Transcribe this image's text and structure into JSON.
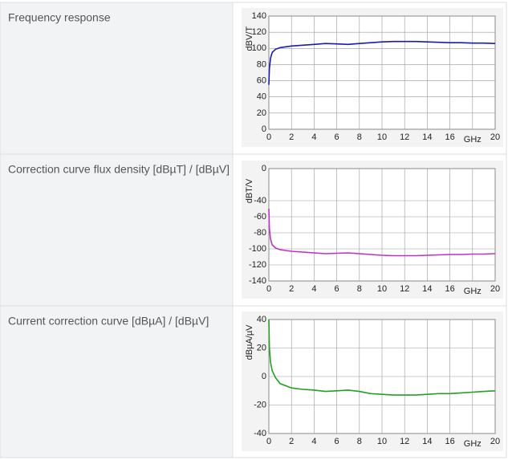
{
  "chart_data": [
    {
      "type": "line",
      "title": "Frequency response",
      "y_label": "dBV/T",
      "color": "#1a1ab4",
      "x": [
        0,
        0.05,
        0.15,
        0.3,
        0.6,
        1,
        2,
        3,
        4,
        5,
        6,
        7,
        8,
        9,
        10,
        11,
        12,
        13,
        14,
        15,
        16,
        17,
        18,
        19,
        20
      ],
      "values": [
        55,
        75,
        88,
        95,
        99,
        101,
        103,
        104,
        105,
        106,
        105.5,
        105,
        106,
        107,
        108,
        108.5,
        108.5,
        108.5,
        108,
        107.5,
        107,
        107,
        106.5,
        106.5,
        106
      ],
      "xlim": [
        0,
        20
      ],
      "ylim": [
        0,
        140
      ],
      "xticks": [
        0,
        2,
        4,
        6,
        8,
        10,
        12,
        14,
        16,
        {
          "value": 18,
          "label": "GHz"
        },
        20
      ],
      "yticks": [
        0,
        20,
        40,
        60,
        80,
        100,
        120,
        140
      ],
      "grid": true
    },
    {
      "type": "line",
      "title": "Correction curve flux density [dBµT] / [dBµV]",
      "y_label": "dBT/V",
      "color": "#c030c8",
      "x": [
        0,
        0.05,
        0.15,
        0.3,
        0.6,
        1,
        2,
        3,
        4,
        5,
        6,
        7,
        8,
        9,
        10,
        11,
        12,
        13,
        14,
        15,
        16,
        17,
        18,
        19,
        20
      ],
      "values": [
        -50,
        -75,
        -88,
        -95,
        -99,
        -101,
        -103,
        -104,
        -105,
        -106,
        -105.5,
        -105,
        -106,
        -107,
        -108,
        -108.5,
        -108.5,
        -108.5,
        -108,
        -107.5,
        -107,
        -107,
        -106.5,
        -106.5,
        -106
      ],
      "xlim": [
        0,
        20
      ],
      "ylim": [
        -140,
        0
      ],
      "xticks": [
        0,
        2,
        4,
        6,
        8,
        10,
        12,
        14,
        16,
        {
          "value": 18,
          "label": "GHz"
        },
        20
      ],
      "yticks": [
        0,
        -40,
        -60,
        -80,
        -100,
        -120,
        -140
      ],
      "grid": true
    },
    {
      "type": "line",
      "title": "Current correction curve [dBµA] / [dBµV]",
      "y_label": "dBµA/µV",
      "color": "#22a022",
      "x": [
        0,
        0.05,
        0.15,
        0.3,
        0.6,
        1,
        2,
        3,
        4,
        5,
        6,
        7,
        8,
        9,
        10,
        11,
        12,
        13,
        14,
        15,
        16,
        17,
        18,
        19,
        20
      ],
      "values": [
        40,
        20,
        10,
        4,
        -1,
        -5,
        -8,
        -9,
        -9.5,
        -10.5,
        -10,
        -9.5,
        -10.5,
        -12,
        -12.5,
        -13,
        -13,
        -13,
        -12.5,
        -12,
        -12,
        -11.5,
        -11,
        -10.5,
        -10
      ],
      "xlim": [
        0,
        20
      ],
      "ylim": [
        -40,
        40
      ],
      "xticks": [
        0,
        2,
        4,
        6,
        8,
        10,
        12,
        14,
        16,
        {
          "value": 18,
          "label": "GHz"
        },
        20
      ],
      "yticks": [
        -40,
        -20,
        0,
        20,
        40
      ],
      "grid": true
    }
  ]
}
